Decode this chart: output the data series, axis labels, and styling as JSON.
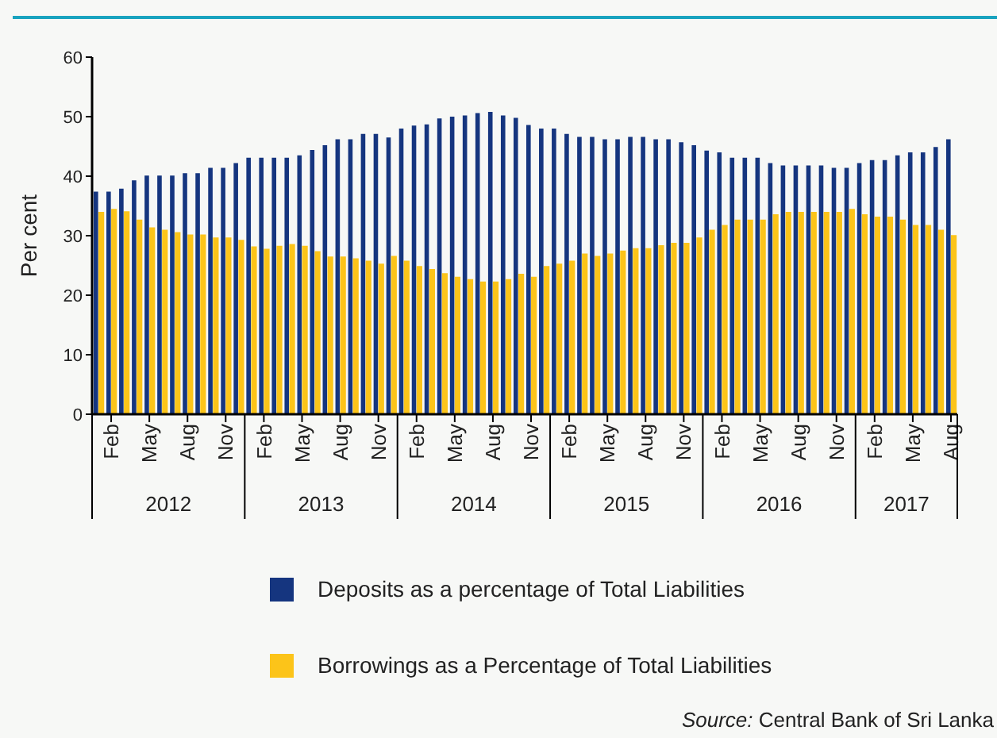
{
  "chart_data": {
    "type": "bar",
    "ylabel": "Per cent",
    "ylim": [
      0,
      60
    ],
    "yticks": [
      0,
      10,
      20,
      30,
      40,
      50,
      60
    ],
    "grid": false,
    "legend": "bottom",
    "categories": [
      null,
      "Feb",
      null,
      null,
      "May",
      null,
      null,
      "Aug",
      null,
      null,
      "Nov",
      null,
      null,
      "Feb",
      null,
      null,
      "May",
      null,
      null,
      "Aug",
      null,
      null,
      "Nov",
      null,
      null,
      "Feb",
      null,
      null,
      "May",
      null,
      null,
      "Aug",
      null,
      null,
      "Nov",
      null,
      null,
      "Feb",
      null,
      null,
      "May",
      null,
      null,
      "Aug",
      null,
      null,
      "Nov",
      null,
      null,
      "Feb",
      null,
      null,
      "May",
      null,
      null,
      "Aug",
      null,
      null,
      "Nov",
      null,
      null,
      "Feb",
      null,
      null,
      "May",
      null,
      null,
      "Aug"
    ],
    "series": [
      {
        "name": "Deposits as a percentage of Total Liabilities",
        "color": "#15357f",
        "values": [
          37.4,
          37.4,
          37.9,
          39.3,
          40.1,
          40.1,
          40.1,
          40.5,
          40.5,
          41.4,
          41.4,
          42.2,
          43.1,
          43.1,
          43.1,
          43.1,
          43.5,
          44.4,
          45.2,
          46.2,
          46.2,
          47.1,
          47.1,
          46.5,
          48.0,
          48.5,
          48.7,
          49.7,
          50.0,
          50.2,
          50.6,
          50.8,
          50.2,
          49.8,
          48.6,
          48.0,
          48.0,
          47.1,
          46.6,
          46.6,
          46.2,
          46.2,
          46.6,
          46.6,
          46.2,
          46.2,
          45.7,
          45.2,
          44.3,
          44.0,
          43.1,
          43.1,
          43.1,
          42.2,
          41.8,
          41.8,
          41.8,
          41.8,
          41.4,
          41.4,
          42.2,
          42.7,
          42.7,
          43.5,
          44.0,
          44.0,
          44.9,
          46.2
        ]
      },
      {
        "name": "Borrowings as a Percentage of Total Liabilities",
        "color": "#fcc419",
        "values": [
          34.0,
          34.5,
          34.1,
          32.7,
          31.4,
          31.0,
          30.6,
          30.2,
          30.2,
          29.7,
          29.7,
          29.3,
          28.2,
          27.8,
          28.3,
          28.6,
          28.3,
          27.4,
          26.5,
          26.5,
          26.2,
          25.8,
          25.3,
          26.6,
          25.8,
          24.9,
          24.4,
          23.7,
          23.1,
          22.7,
          22.3,
          22.3,
          22.7,
          23.6,
          23.1,
          24.9,
          25.3,
          25.8,
          27.0,
          26.6,
          27.0,
          27.5,
          27.9,
          27.9,
          28.4,
          28.8,
          28.8,
          29.7,
          31.0,
          31.8,
          32.7,
          32.7,
          32.7,
          33.6,
          34.0,
          34.0,
          34.0,
          34.0,
          34.0,
          34.5,
          33.6,
          33.2,
          33.2,
          32.7,
          31.8,
          31.8,
          31.0,
          30.1
        ]
      }
    ],
    "annotations": [
      "2012",
      "2013",
      "2014",
      "2015",
      "2016",
      "2017",
      "Source: Central Bank of Sri Lanka"
    ]
  }
}
